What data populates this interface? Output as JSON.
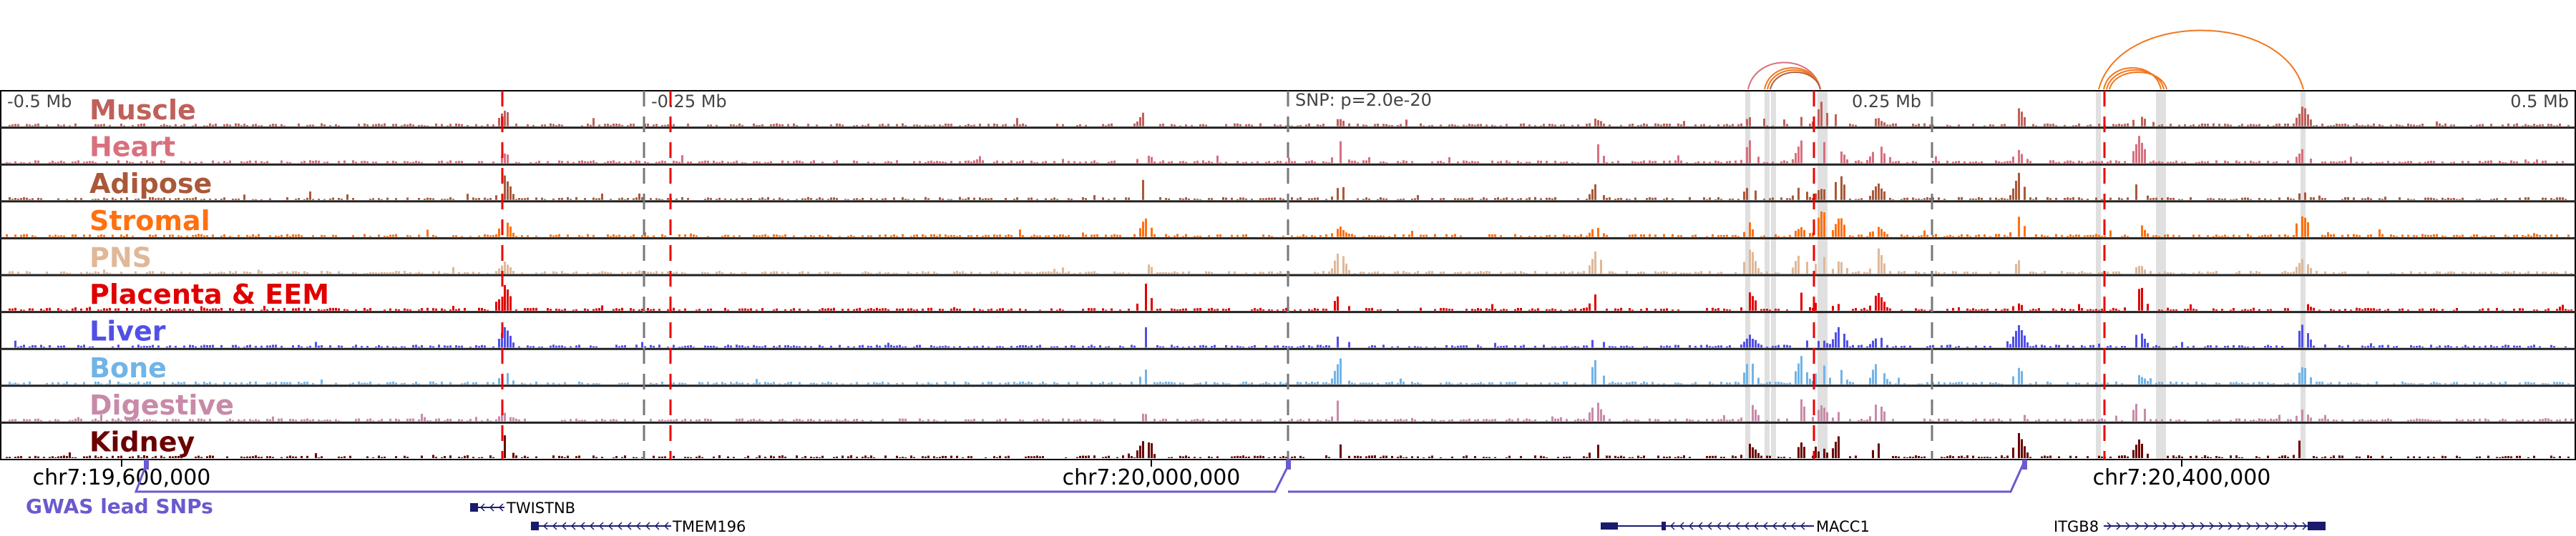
{
  "scale": {
    "left": "-0.5 Mb",
    "left_mid": "-0.25 Mb",
    "center": "SNP: p=2.0e-20",
    "right_mid": "0.25 Mb",
    "right": "0.5 Mb"
  },
  "tracks": [
    {
      "label": "Muscle",
      "color": "#c0605a"
    },
    {
      "label": "Heart",
      "color": "#d9707e"
    },
    {
      "label": "Adipose",
      "color": "#a9583a"
    },
    {
      "label": "Stromal",
      "color": "#ff7010"
    },
    {
      "label": "PNS",
      "color": "#e0b898"
    },
    {
      "label": "Placenta & EEM",
      "color": "#e00000"
    },
    {
      "label": "Liver",
      "color": "#5050e6"
    },
    {
      "label": "Bone",
      "color": "#70b4e8"
    },
    {
      "label": "Digestive",
      "color": "#c88aa8"
    },
    {
      "label": "Kidney",
      "color": "#6a0000"
    }
  ],
  "coords": [
    "chr7:19,600,000",
    "chr7:20,000,000",
    "chr7:20,400,000"
  ],
  "gwas": {
    "label": "GWAS lead SNPs",
    "color": "#6a5acd"
  },
  "genes": [
    {
      "name": "TWISTNB",
      "strand": "-"
    },
    {
      "name": "TMEM196",
      "strand": "-"
    },
    {
      "name": "MACC1",
      "strand": "-"
    },
    {
      "name": "ITGB8",
      "strand": "+"
    }
  ],
  "colors": {
    "gene": "#1a1a6e",
    "red_line": "#ee0000",
    "gray_line": "#777777",
    "highlight": "#e0e0e0",
    "arc_orange": "#f07820",
    "arc_pink": "#d9707e"
  },
  "peaks_kb": [
    -306,
    -56,
    20,
    180,
    200,
    208,
    215,
    230,
    332,
    396,
    285,
    120
  ]
}
